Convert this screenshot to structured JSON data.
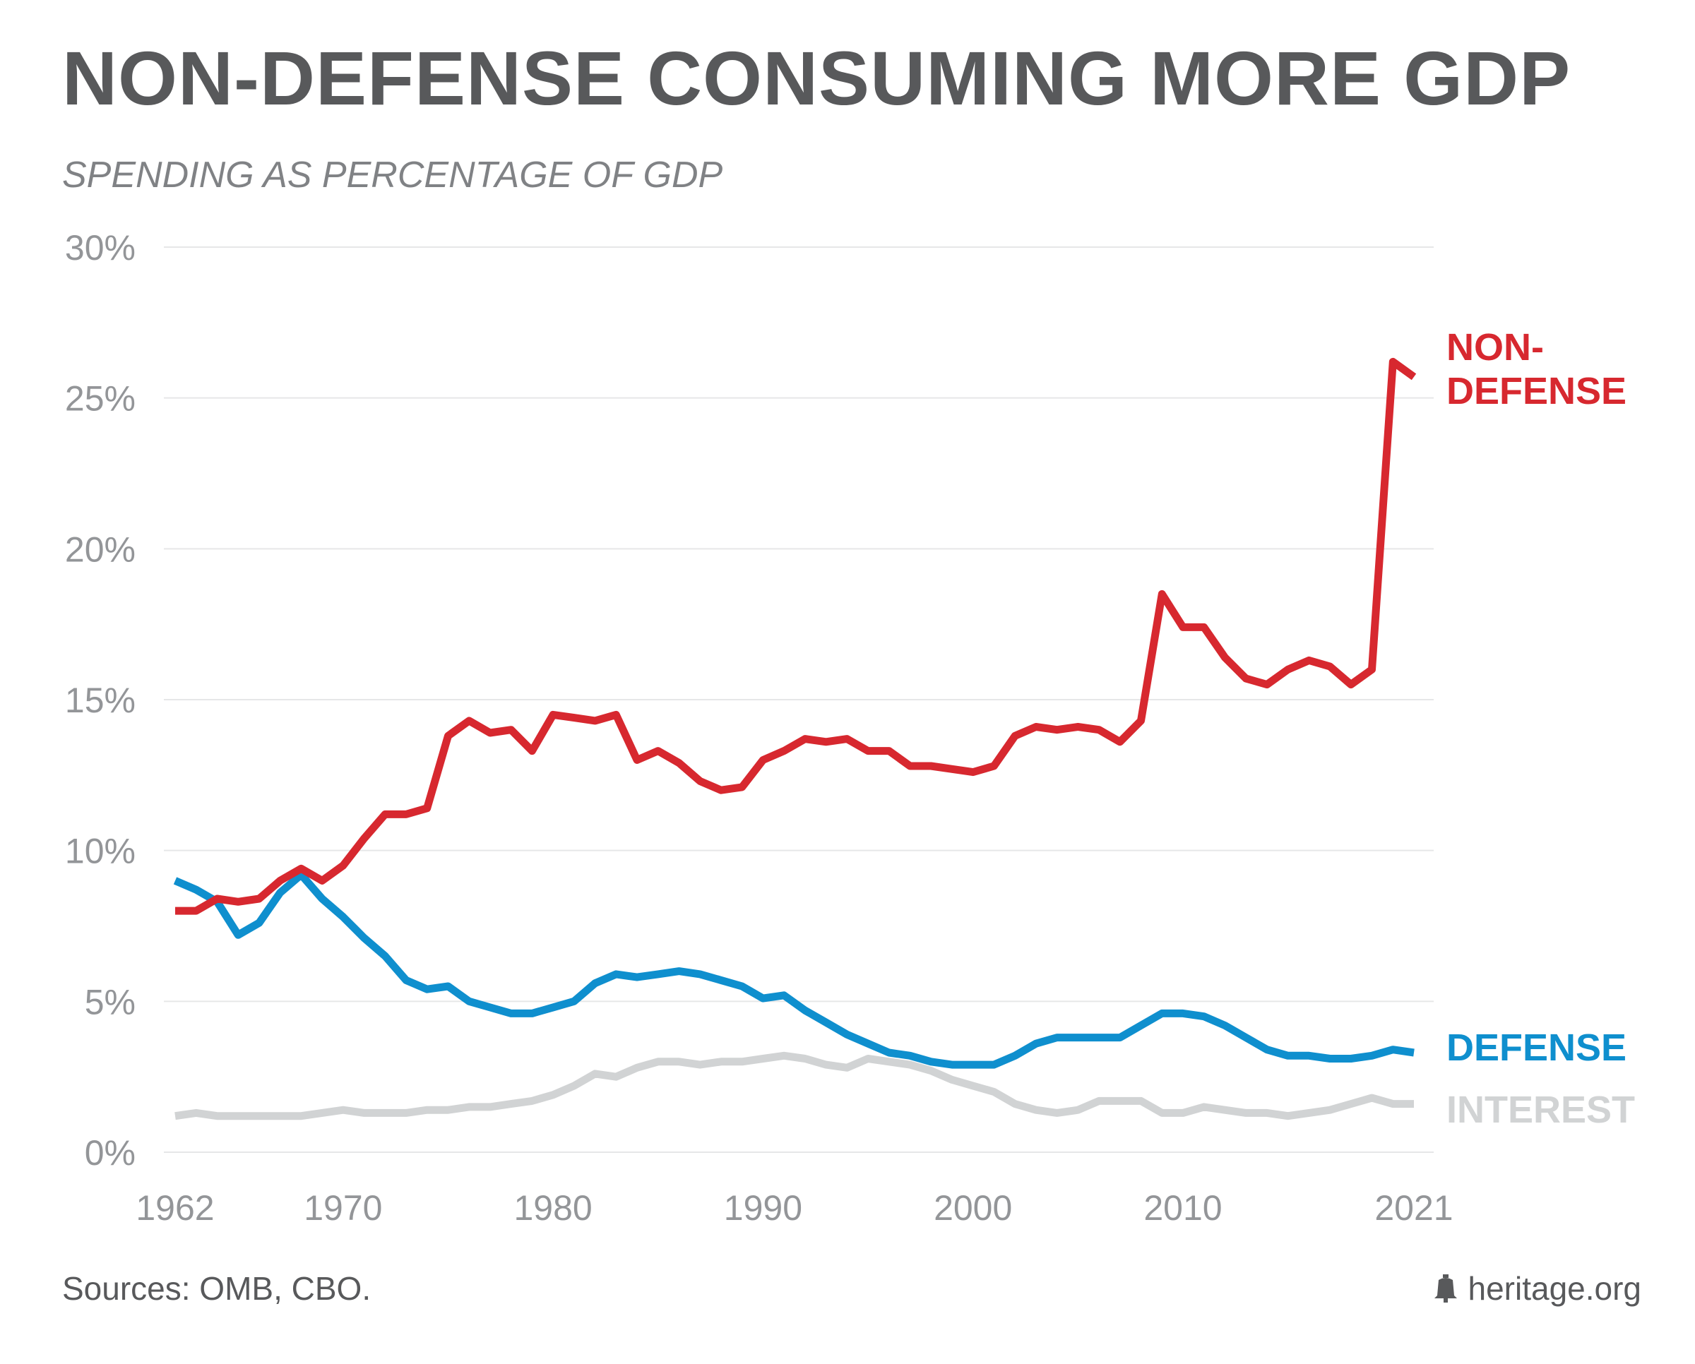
{
  "header": {
    "title": "NON-DEFENSE CONSUMING MORE GDP",
    "subtitle": "SPENDING AS PERCENTAGE OF GDP"
  },
  "footer": {
    "source": "Sources: OMB, CBO.",
    "brand": "heritage.org",
    "brand_icon": "liberty-bell-icon"
  },
  "chart_data": {
    "type": "line",
    "title": "NON-DEFENSE CONSUMING MORE GDP",
    "subtitle": "SPENDING AS PERCENTAGE OF GDP",
    "xlabel": "",
    "ylabel": "",
    "xlim": [
      1962,
      2021
    ],
    "ylim": [
      0,
      30
    ],
    "x_ticks": [
      1962,
      1970,
      1980,
      1990,
      2000,
      2010,
      2021
    ],
    "y_ticks": [
      0,
      5,
      10,
      15,
      20,
      25,
      30
    ],
    "y_tick_labels": [
      "0%",
      "5%",
      "10%",
      "15%",
      "20%",
      "25%",
      "30%"
    ],
    "grid": true,
    "legend": "direct labels at right end of lines",
    "x": [
      1962,
      1963,
      1964,
      1965,
      1966,
      1967,
      1968,
      1969,
      1970,
      1971,
      1972,
      1973,
      1974,
      1975,
      1976,
      1977,
      1978,
      1979,
      1980,
      1981,
      1982,
      1983,
      1984,
      1985,
      1986,
      1987,
      1988,
      1989,
      1990,
      1991,
      1992,
      1993,
      1994,
      1995,
      1996,
      1997,
      1998,
      1999,
      2000,
      2001,
      2002,
      2003,
      2004,
      2005,
      2006,
      2007,
      2008,
      2009,
      2010,
      2011,
      2012,
      2013,
      2014,
      2015,
      2016,
      2017,
      2018,
      2019,
      2020,
      2021
    ],
    "series": [
      {
        "name": "NON-DEFENSE",
        "label_lines": [
          "NON-",
          "DEFENSE"
        ],
        "color": "#d7282f",
        "values": [
          8.0,
          8.0,
          8.4,
          8.3,
          8.4,
          9.0,
          9.4,
          9.0,
          9.5,
          10.4,
          11.2,
          11.2,
          11.4,
          13.8,
          14.3,
          13.9,
          14.0,
          13.3,
          14.5,
          14.4,
          14.3,
          14.5,
          13.0,
          13.3,
          12.9,
          12.3,
          12.0,
          12.1,
          13.0,
          13.3,
          13.7,
          13.6,
          13.7,
          13.3,
          13.3,
          12.8,
          12.8,
          12.7,
          12.6,
          12.8,
          13.8,
          14.1,
          14.0,
          14.1,
          14.0,
          13.6,
          14.3,
          18.5,
          17.4,
          17.4,
          16.4,
          15.7,
          15.5,
          16.0,
          16.3,
          16.1,
          15.5,
          16.0,
          26.2,
          25.7
        ]
      },
      {
        "name": "DEFENSE",
        "label_lines": [
          "DEFENSE"
        ],
        "color": "#0f8fce",
        "values": [
          9.0,
          8.7,
          8.3,
          7.2,
          7.6,
          8.6,
          9.2,
          8.4,
          7.8,
          7.1,
          6.5,
          5.7,
          5.4,
          5.5,
          5.0,
          4.8,
          4.6,
          4.6,
          4.8,
          5.0,
          5.6,
          5.9,
          5.8,
          5.9,
          6.0,
          5.9,
          5.7,
          5.5,
          5.1,
          5.2,
          4.7,
          4.3,
          3.9,
          3.6,
          3.3,
          3.2,
          3.0,
          2.9,
          2.9,
          2.9,
          3.2,
          3.6,
          3.8,
          3.8,
          3.8,
          3.8,
          4.2,
          4.6,
          4.6,
          4.5,
          4.2,
          3.8,
          3.4,
          3.2,
          3.2,
          3.1,
          3.1,
          3.2,
          3.4,
          3.3
        ]
      },
      {
        "name": "INTEREST",
        "label_lines": [
          "INTEREST"
        ],
        "color": "#d1d3d4",
        "values": [
          1.2,
          1.3,
          1.2,
          1.2,
          1.2,
          1.2,
          1.2,
          1.3,
          1.4,
          1.3,
          1.3,
          1.3,
          1.4,
          1.4,
          1.5,
          1.5,
          1.6,
          1.7,
          1.9,
          2.2,
          2.6,
          2.5,
          2.8,
          3.0,
          3.0,
          2.9,
          3.0,
          3.0,
          3.1,
          3.2,
          3.1,
          2.9,
          2.8,
          3.1,
          3.0,
          2.9,
          2.7,
          2.4,
          2.2,
          2.0,
          1.6,
          1.4,
          1.3,
          1.4,
          1.7,
          1.7,
          1.7,
          1.3,
          1.3,
          1.5,
          1.4,
          1.3,
          1.3,
          1.2,
          1.3,
          1.4,
          1.6,
          1.8,
          1.6,
          1.6
        ]
      }
    ]
  }
}
